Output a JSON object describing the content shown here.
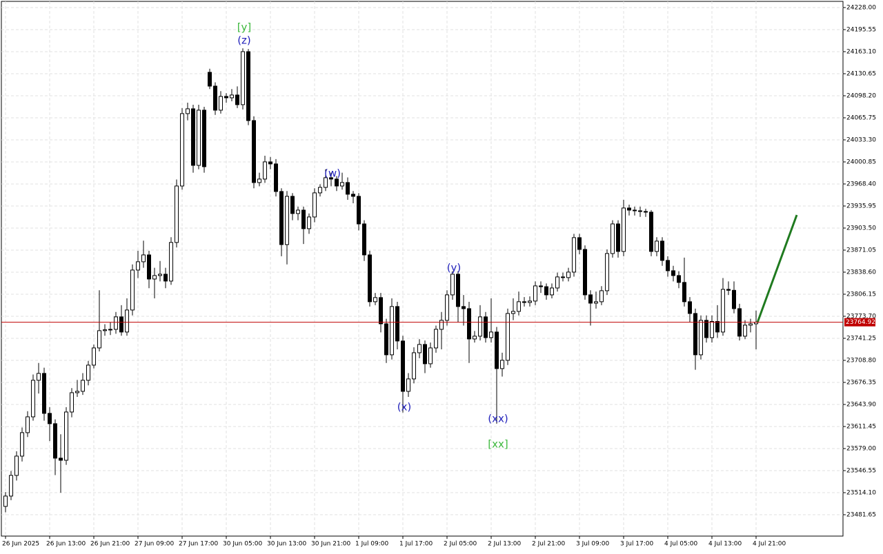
{
  "chart_data": {
    "type": "candlestick",
    "categories": [
      "26 Jun 2025",
      null,
      null,
      null,
      null,
      null,
      null,
      null,
      "26 Jun 13:00",
      null,
      null,
      null,
      null,
      null,
      null,
      null,
      "26 Jun 21:00",
      null,
      null,
      null,
      null,
      null,
      null,
      null,
      "27 Jun 09:00",
      null,
      null,
      null,
      null,
      null,
      null,
      null,
      "27 Jun 17:00",
      null,
      null,
      null,
      null,
      null,
      null,
      null,
      "30 Jun 05:00",
      null,
      null,
      null,
      null,
      null,
      null,
      null,
      "30 Jun 13:00",
      null,
      null,
      null,
      null,
      null,
      null,
      null,
      "30 Jun 21:00",
      null,
      null,
      null,
      null,
      null,
      null,
      null,
      "1 Jul 09:00",
      null,
      null,
      null,
      null,
      null,
      null,
      null,
      "1 Jul 17:00",
      null,
      null,
      null,
      null,
      null,
      null,
      null,
      "2 Jul 05:00",
      null,
      null,
      null,
      null,
      null,
      null,
      null,
      "2 Jul 13:00",
      null,
      null,
      null,
      null,
      null,
      null,
      null,
      "2 Jul 21:00",
      null,
      null,
      null,
      null,
      null,
      null,
      null,
      "3 Jul 09:00",
      null,
      null,
      null,
      null,
      null,
      null,
      null,
      "3 Jul 17:00",
      null,
      null,
      null,
      null,
      null,
      null,
      null,
      "4 Jul 05:00",
      null,
      null,
      null,
      null,
      null,
      null,
      null,
      "4 Jul 13:00",
      null,
      null,
      null,
      null,
      null,
      null,
      null,
      "4 Jul 21:00"
    ],
    "open": [
      23493.9,
      23509.1,
      23539.5,
      23567.9,
      23602.4,
      23625.7,
      23679.5,
      23689.6,
      23630.8,
      23615.6,
      23564.9,
      23561.8,
      23632.8,
      23661.2,
      23663.3,
      23679.5,
      23701.8,
      23727.1,
      23752.5,
      23753.8,
      23754.5,
      23772.8,
      23750.5,
      23782.9,
      23841.7,
      23853.9,
      23864.0,
      23828.5,
      23833.6,
      23835.6,
      23825.5,
      23882.3,
      23965.4,
      24071.9,
      24079.0,
      23995.8,
      24077.0,
      24132.7,
      24112.4,
      24077.0,
      24097.2,
      24095.2,
      24099.3,
      24085.1,
      24163.1,
      24061.7,
      23970.5,
      23975.6,
      24000.9,
      23997.9,
      23957.3,
      23879.2,
      23950.2,
      23924.9,
      23929.9,
      23902.6,
      23919.8,
      23955.3,
      23963.4,
      23977.6,
      23975.6,
      23965.4,
      23970.5,
      23953.3,
      23950.2,
      23909.6,
      23864.0,
      23795.1,
      23801.2,
      23762.6,
      23717.0,
      23788.0,
      23737.3,
      23663.2,
      23681.5,
      23720.0,
      23732.2,
      23703.8,
      23727.1,
      23754.5,
      23767.7,
      23805.2,
      23835.6,
      23788.0,
      23784.9,
      23740.3,
      23744.4,
      23772.8,
      23742.3,
      23750.5,
      23696.7,
      23708.9,
      23777.8,
      23780.9,
      23795.1,
      23794.0,
      23796.1,
      23818.4,
      23817.2,
      23805.2,
      23815.3,
      23831.6,
      23830.6,
      23838.7,
      23889.4,
      23872.1,
      23805.2,
      23793.0,
      23795.1,
      23811.3,
      23866.0,
      23909.6,
      23869.1,
      23933.0,
      23929.9,
      23928.9,
      23927.9,
      23926.9,
      23869.1,
      23884.3,
      23855.9,
      23840.7,
      23833.6,
      23823.5,
      23795.1,
      23777.8,
      23717.0,
      23767.7,
      23742.3,
      23766.1,
      23750.5,
      23813.3,
      23811.9,
      23784.9,
      23744.4,
      23760.6,
      23762.6
    ],
    "high": [
      23515.0,
      23546.0,
      23575.0,
      23610.0,
      23634.0,
      23688.0,
      23705.0,
      23698.0,
      23640.0,
      23622.0,
      23600.0,
      23640.0,
      23668.0,
      23680.0,
      23690.0,
      23708.0,
      23732.0,
      23812.0,
      23762.0,
      23765.0,
      23780.0,
      23790.0,
      23800.0,
      23850.0,
      23870.0,
      23885.0,
      23870.0,
      23845.0,
      23855.0,
      23845.0,
      23890.0,
      23975.0,
      24080.0,
      24088.0,
      24085.0,
      24085.0,
      24082.0,
      24138.0,
      24118.0,
      24105.0,
      24102.0,
      24108.0,
      24112.0,
      24168.0,
      24167.0,
      24068.0,
      23985.0,
      24010.0,
      24008.0,
      24005.0,
      23962.0,
      23958.0,
      23955.0,
      23935.0,
      23935.0,
      23925.0,
      23962.0,
      23968.0,
      23990.0,
      23985.0,
      23980.0,
      23985.0,
      23978.0,
      23958.0,
      23955.0,
      23915.0,
      23870.0,
      23808.0,
      23808.0,
      23770.0,
      23800.0,
      23795.0,
      23745.0,
      23690.0,
      23728.0,
      23740.0,
      23738.0,
      23735.0,
      23760.0,
      23780.0,
      23812.0,
      23840.0,
      23840.0,
      23805.0,
      23795.0,
      23752.0,
      23790.0,
      23780.0,
      23800.0,
      23758.0,
      23720.0,
      23785.0,
      23800.0,
      23810.0,
      23802.0,
      23803.0,
      23825.0,
      23825.0,
      23822.0,
      23822.0,
      23838.0,
      23838.0,
      23845.0,
      23895.0,
      23895.0,
      23878.0,
      23812.0,
      23810.0,
      23818.0,
      23872.0,
      23915.0,
      23915.0,
      23945.0,
      23938.0,
      23935.0,
      23935.0,
      23932.0,
      23930.0,
      23890.0,
      23890.0,
      23862.0,
      23848.0,
      23840.0,
      23860.0,
      23802.0,
      23785.0,
      23775.0,
      23775.0,
      23775.0,
      23790.0,
      23830.0,
      23825.0,
      23825.0,
      23792.0,
      23768.0,
      23770.0,
      23782.0
    ],
    "low": [
      23485.2,
      23503.0,
      23532.0,
      23560.0,
      23596.0,
      23620.0,
      23660.0,
      23620.0,
      23590.0,
      23540.0,
      23514.0,
      23555.0,
      23625.0,
      23655.0,
      23658.0,
      23672.0,
      23697.0,
      23722.0,
      23745.0,
      23746.0,
      23748.0,
      23745.0,
      23745.0,
      23775.0,
      23830.0,
      23845.0,
      23815.0,
      23800.0,
      23825.0,
      23815.0,
      23820.0,
      23875.0,
      23960.0,
      24062.0,
      23985.0,
      23990.0,
      23985.0,
      24108.0,
      24070.0,
      24072.0,
      24088.0,
      24090.0,
      24080.0,
      24078.0,
      24055.0,
      23962.0,
      23965.0,
      23970.0,
      23990.0,
      23950.0,
      23862.0,
      23850.0,
      23915.0,
      23915.0,
      23880.0,
      23895.0,
      23912.0,
      23950.0,
      23958.0,
      23965.0,
      23958.0,
      23960.0,
      23945.0,
      23940.0,
      23900.0,
      23855.0,
      23788.0,
      23790.0,
      23750.0,
      23705.0,
      23710.0,
      23725.0,
      23632.0,
      23655.0,
      23675.0,
      23712.0,
      23690.0,
      23698.0,
      23720.0,
      23725.0,
      23760.0,
      23798.0,
      23765.0,
      23760.0,
      23705.0,
      23735.0,
      23738.0,
      23735.0,
      23735.0,
      23615.6,
      23685.0,
      23702.0,
      23768.0,
      23775.0,
      23788.0,
      23788.0,
      23790.0,
      23808.0,
      23798.0,
      23800.0,
      23810.0,
      23825.0,
      23825.0,
      23832.0,
      23865.0,
      23798.0,
      23760.0,
      23785.0,
      23790.0,
      23805.0,
      23860.0,
      23860.0,
      23862.0,
      23922.0,
      23922.0,
      23920.0,
      23920.0,
      23862.0,
      23862.0,
      23848.0,
      23832.0,
      23825.0,
      23815.0,
      23788.0,
      23765.0,
      23695.0,
      23710.0,
      23735.0,
      23735.0,
      23742.0,
      23745.0,
      23805.0,
      23778.0,
      23738.0,
      23740.0,
      23750.0,
      23725.0
    ],
    "close": [
      23509.1,
      23539.5,
      23567.9,
      23602.4,
      23625.7,
      23679.5,
      23689.6,
      23630.8,
      23615.6,
      23564.9,
      23561.8,
      23632.8,
      23661.2,
      23663.3,
      23679.5,
      23701.8,
      23727.1,
      23752.5,
      23753.8,
      23754.5,
      23772.8,
      23750.5,
      23782.9,
      23841.7,
      23853.9,
      23864.0,
      23828.5,
      23833.6,
      23835.6,
      23825.5,
      23882.3,
      23965.4,
      24071.9,
      24079.0,
      23995.8,
      24077.0,
      23993.8,
      24112.4,
      24077.0,
      24097.2,
      24095.2,
      24099.3,
      24085.1,
      24163.1,
      24061.7,
      23970.5,
      23975.6,
      24000.9,
      23997.9,
      23957.3,
      23879.2,
      23950.2,
      23924.9,
      23929.9,
      23902.6,
      23919.8,
      23955.3,
      23963.4,
      23977.6,
      23975.6,
      23965.4,
      23970.5,
      23953.3,
      23950.2,
      23909.6,
      23864.0,
      23795.1,
      23801.2,
      23762.6,
      23717.0,
      23788.0,
      23737.3,
      23663.2,
      23681.5,
      23720.0,
      23732.2,
      23703.8,
      23727.1,
      23754.5,
      23767.7,
      23805.2,
      23835.6,
      23788.0,
      23784.9,
      23740.3,
      23744.4,
      23772.8,
      23742.3,
      23750.5,
      23696.7,
      23708.9,
      23777.8,
      23780.9,
      23795.1,
      23794.0,
      23796.1,
      23818.4,
      23817.2,
      23805.2,
      23815.3,
      23831.6,
      23830.6,
      23838.7,
      23889.4,
      23872.1,
      23805.2,
      23793.0,
      23795.1,
      23811.3,
      23866.0,
      23909.6,
      23869.1,
      23933.0,
      23929.9,
      23928.9,
      23927.9,
      23926.9,
      23869.1,
      23884.3,
      23855.9,
      23840.7,
      23833.6,
      23823.5,
      23795.1,
      23777.8,
      23717.0,
      23767.7,
      23742.3,
      23766.1,
      23750.5,
      23813.3,
      23811.9,
      23784.9,
      23744.4,
      23760.6,
      23762.6,
      23764.92
    ],
    "up_color": "#ffffff",
    "down_color": "#000000",
    "ylim": [
      23450.2,
      24237.1
    ],
    "yticks": [
      {
        "value": 24228,
        "label": "24228.00"
      },
      24195.55,
      {
        "value": 24163.1,
        "label": "24163.10"
      },
      24130.65,
      {
        "value": 24098.2,
        "label": "24098.20"
      },
      24065.75,
      {
        "value": 24033.3,
        "label": "24033.30"
      },
      24000.85,
      {
        "value": 23968.4,
        "label": "23968.40"
      },
      23935.95,
      {
        "value": 23903.5,
        "label": "23903.50"
      },
      23871.05,
      {
        "value": 23838.6,
        "label": "23838.60"
      },
      23806.15,
      {
        "value": 23773.7,
        "label": "23773.70"
      },
      23741.25,
      {
        "value": 23708.8,
        "label": "23708.80"
      },
      23676.35,
      {
        "value": 23643.9,
        "label": "23643.90"
      },
      23611.45,
      {
        "value": 23579,
        "label": "23579.00"
      },
      23546.55,
      {
        "value": 23514.1,
        "label": "23514.10"
      },
      23481.65
    ],
    "grid": true,
    "current_price": 23764.92,
    "current_price_color": "#c00000",
    "annotations": [
      "[y]",
      "(z)",
      "(w)",
      "(x)",
      "(y)",
      "(xx)",
      "[xx]"
    ]
  }
}
